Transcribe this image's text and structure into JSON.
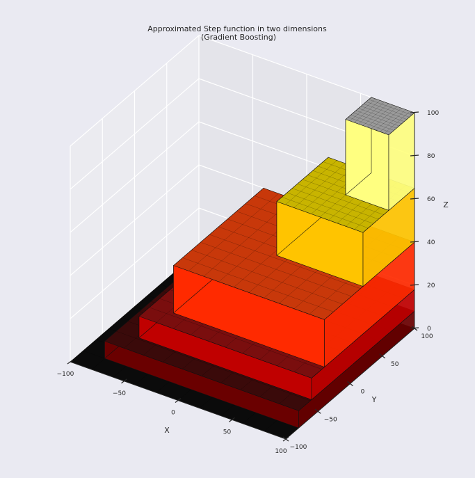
{
  "chart_data": {
    "type": "surface",
    "title": "Approximated Step function in two dimensions",
    "subtitle": "(Gradient Boosting)",
    "xlabel": "X",
    "ylabel": "Y",
    "zlabel": "Z",
    "xlim": [
      -100,
      100
    ],
    "ylim": [
      -100,
      100
    ],
    "zlim": [
      0,
      100
    ],
    "x_ticks": [
      "−100",
      "−50",
      "0",
      "50",
      "100"
    ],
    "y_ticks": [
      "−100",
      "−50",
      "0",
      "50",
      "100"
    ],
    "z_ticks": [
      "0",
      "20",
      "40",
      "60",
      "80",
      "100"
    ],
    "grid": true,
    "colormap": "hot",
    "steps": [
      {
        "level": 1,
        "x_from": -100,
        "x_to": 100,
        "y_from": -100,
        "y_to": 100,
        "z": 0
      },
      {
        "level": 2,
        "x_from": -80,
        "x_to": 100,
        "y_from": -80,
        "y_to": 100,
        "z": 8
      },
      {
        "level": 3,
        "x_from": -60,
        "x_to": 100,
        "y_from": -60,
        "y_to": 100,
        "z": 18
      },
      {
        "level": 4,
        "x_from": -40,
        "x_to": 100,
        "y_from": -40,
        "y_to": 100,
        "z": 40
      },
      {
        "level": 5,
        "x_from": 20,
        "x_to": 100,
        "y_from": 20,
        "y_to": 100,
        "z": 65
      },
      {
        "level": 6,
        "x_from": 60,
        "x_to": 100,
        "y_from": 60,
        "y_to": 100,
        "z": 100
      }
    ],
    "step_colors": [
      "#0b0b0b",
      "#3a0a0a",
      "#7a0e0e",
      "#c8380a",
      "#c8b400",
      "#9a9a9a"
    ],
    "wall_colors": [
      "#1a1a1a",
      "#6a0000",
      "#c00000",
      "#ff2a00",
      "#ffc400",
      "#ffff80"
    ]
  }
}
